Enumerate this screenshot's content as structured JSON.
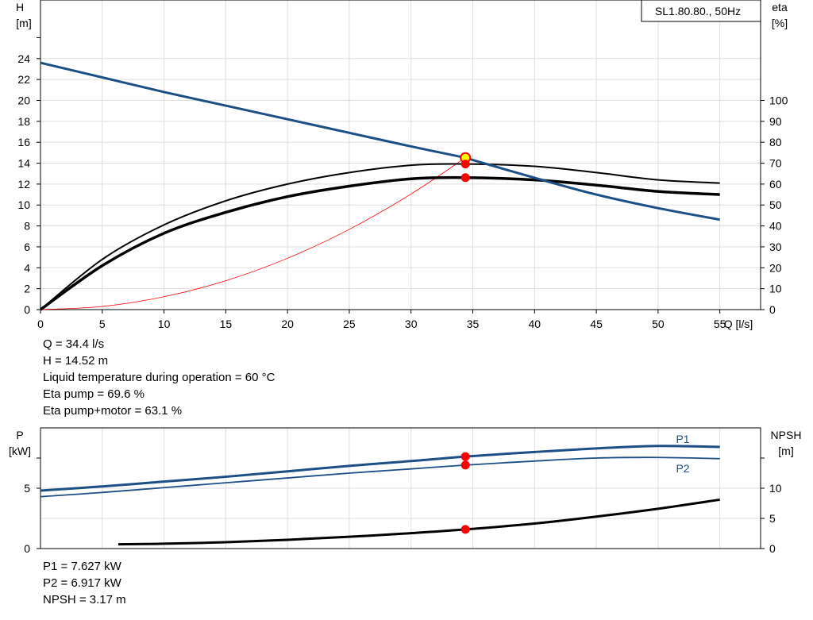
{
  "title_box": "SL1.80.80., 50Hz",
  "top_chart": {
    "left_axis": {
      "label": "H",
      "unit": "[m]"
    },
    "right_axis": {
      "label": "eta",
      "unit": "[%]"
    },
    "x_axis_label": "Q [l/s]"
  },
  "bottom_chart": {
    "left_axis": {
      "label": "P",
      "unit": "[kW]"
    },
    "right_axis": {
      "label": "NPSH",
      "unit": "[m]"
    },
    "series_labels": {
      "p1": "P1",
      "p2": "P2"
    }
  },
  "duty_info": [
    "Q = 34.4 l/s",
    "H = 14.52 m",
    "Liquid temperature during operation = 60 °C",
    "Eta pump = 69.6 %",
    "Eta pump+motor = 63.1 %"
  ],
  "power_info": [
    "P1 = 7.627 kW",
    "P2 = 6.917 kW",
    "NPSH = 3.17 m"
  ],
  "colors": {
    "head_curve": "#1c4f86",
    "efficiency_curves": "#000000",
    "system_curve": "#ff0000",
    "duty_point": "#ff0000",
    "operating_point": "#ffff00",
    "power_curves": "#1c4f86",
    "npsh_curve": "#000000",
    "grid": "#dedede"
  },
  "chart_data": [
    {
      "type": "line",
      "x_label": "Q [l/s]",
      "y_label": "H [m]",
      "y2_label": "eta [%]",
      "xlim": [
        0,
        58.3
      ],
      "ylim": [
        0,
        29.6
      ],
      "y2lim": [
        0,
        148
      ],
      "x_ticks": [
        0,
        5,
        10,
        15,
        20,
        25,
        30,
        35,
        40,
        45,
        50,
        55
      ],
      "y_ticks": [
        0,
        2,
        4,
        6,
        8,
        10,
        12,
        14,
        16,
        18,
        20,
        22,
        24
      ],
      "y2_ticks": [
        0,
        10,
        20,
        30,
        40,
        50,
        60,
        70,
        80,
        90,
        100
      ],
      "grid": true,
      "series": [
        {
          "key": "head",
          "axis": "left",
          "x": [
            0,
            5,
            10,
            15,
            20,
            25,
            30,
            34.4,
            35,
            40,
            45,
            50,
            55
          ],
          "y": [
            23.6,
            22.2,
            20.8,
            19.5,
            18.2,
            16.9,
            15.6,
            14.52,
            14.3,
            12.6,
            11.0,
            9.7,
            8.6
          ]
        },
        {
          "key": "eta_pump",
          "axis": "right",
          "x": [
            0,
            5,
            10,
            15,
            20,
            25,
            30,
            34.4,
            40,
            45,
            50,
            55
          ],
          "y": [
            0,
            24,
            40.5,
            52,
            60,
            65.5,
            69,
            69.6,
            68.5,
            65.5,
            62,
            60.5
          ]
        },
        {
          "key": "eta_pump_motor",
          "axis": "right",
          "x": [
            0,
            5,
            10,
            15,
            20,
            25,
            30,
            34.4,
            40,
            45,
            50,
            55
          ],
          "y": [
            0,
            21,
            36.5,
            46.5,
            54,
            59,
            62.5,
            63.1,
            62,
            59.5,
            56.5,
            55
          ]
        },
        {
          "key": "system",
          "axis": "left",
          "x": [
            0,
            5,
            10,
            15,
            20,
            25,
            30,
            34.4
          ],
          "y": [
            0,
            0.3,
            1.23,
            2.76,
            4.91,
            7.67,
            11.05,
            14.52
          ]
        }
      ],
      "points": [
        {
          "key": "operating_point",
          "axis": "left",
          "x": 34.4,
          "y": 14.52
        },
        {
          "key": "duty_eta_pump",
          "axis": "right",
          "x": 34.4,
          "y": 69.6
        },
        {
          "key": "duty_eta_motor",
          "axis": "right",
          "x": 34.4,
          "y": 63.1
        }
      ]
    },
    {
      "type": "line",
      "x_label": "Q [l/s]",
      "y_label": "P [kW]",
      "y2_label": "NPSH [m]",
      "xlim": [
        0,
        58.3
      ],
      "ylim": [
        0,
        10
      ],
      "y2lim": [
        0,
        20
      ],
      "y_ticks": [
        0,
        5
      ],
      "y2_ticks": [
        0,
        5,
        10
      ],
      "y_minor_ticks": [
        7.5
      ],
      "y2_minor_ticks": [
        15
      ],
      "grid": true,
      "series": [
        {
          "key": "p1",
          "name": "P1",
          "axis": "left",
          "x": [
            0,
            5,
            10,
            15,
            20,
            25,
            30,
            34.4,
            40,
            45,
            50,
            55
          ],
          "y": [
            4.8,
            5.15,
            5.55,
            5.95,
            6.4,
            6.85,
            7.25,
            7.627,
            8.0,
            8.3,
            8.5,
            8.42
          ]
        },
        {
          "key": "p2",
          "name": "P2",
          "axis": "left",
          "x": [
            0,
            5,
            10,
            15,
            20,
            25,
            30,
            34.4,
            40,
            45,
            50,
            55
          ],
          "y": [
            4.3,
            4.65,
            5.05,
            5.45,
            5.85,
            6.25,
            6.6,
            6.917,
            7.25,
            7.5,
            7.55,
            7.45
          ]
        },
        {
          "key": "npsh",
          "axis": "right",
          "x": [
            6.3,
            10,
            15,
            20,
            25,
            30,
            34.4,
            40,
            45,
            50,
            55
          ],
          "y": [
            0.7,
            0.8,
            1.05,
            1.45,
            1.95,
            2.55,
            3.17,
            4.15,
            5.3,
            6.6,
            8.1
          ]
        }
      ],
      "points": [
        {
          "key": "duty_p1",
          "axis": "left",
          "x": 34.4,
          "y": 7.627
        },
        {
          "key": "duty_p2",
          "axis": "left",
          "x": 34.4,
          "y": 6.917
        },
        {
          "key": "duty_npsh",
          "axis": "right",
          "x": 34.4,
          "y": 3.17
        }
      ]
    }
  ]
}
